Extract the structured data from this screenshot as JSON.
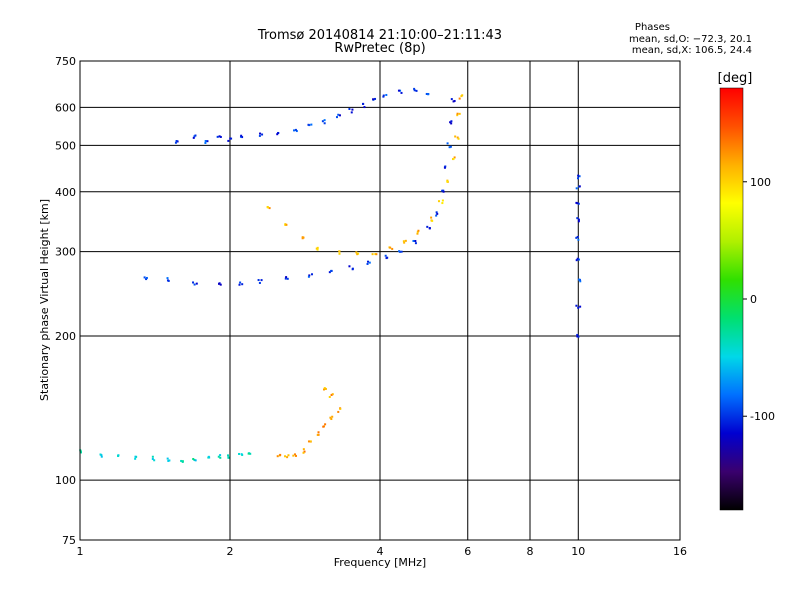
{
  "header": {
    "title_line1": "Tromsø 20140814 21:10:00–21:11:43",
    "title_line2": "RwPretec (8p)",
    "stats_title": "Phases",
    "stats_o": "mean, sd,O: −72.3, 20.1",
    "stats_x": "mean, sd,X: 106.5, 24.4"
  },
  "chart_data": {
    "type": "scatter",
    "xlabel": "Frequency [MHz]",
    "ylabel": "Stationary phase Virtual Height [km]",
    "xscale": "log",
    "yscale": "log",
    "xlim": [
      1,
      16
    ],
    "ylim": [
      75,
      750
    ],
    "xticks": [
      1,
      2,
      4,
      6,
      8,
      10,
      16
    ],
    "xtick_labels": [
      "1",
      "2",
      "4",
      "6",
      "8",
      "10",
      "16"
    ],
    "yticks": [
      75,
      100,
      200,
      300,
      400,
      500,
      600,
      750
    ],
    "ytick_labels": [
      "75",
      "100",
      "200",
      "300",
      "400",
      "500",
      "600",
      "750"
    ],
    "grid": true,
    "colorbar": {
      "label": "[deg]",
      "range": [
        -180,
        180
      ],
      "ticks": [
        100,
        0,
        -100
      ],
      "tick_labels": [
        "100",
        "0",
        "-100"
      ],
      "colors": [
        "#000000",
        "#3a006e",
        "#0000d0",
        "#0070ff",
        "#00d8e8",
        "#00e070",
        "#30e000",
        "#b0f000",
        "#ffff00",
        "#ffb000",
        "#ff5000",
        "#ff0000"
      ]
    },
    "series": [
      {
        "trace": "upper-E-to-F-trace",
        "points": [
          [
            1.57,
            510
          ],
          [
            1.7,
            520
          ],
          [
            1.8,
            510
          ],
          [
            1.9,
            520
          ],
          [
            2.0,
            515
          ],
          [
            2.1,
            520
          ],
          [
            2.3,
            525
          ],
          [
            2.5,
            530
          ],
          [
            2.7,
            540
          ],
          [
            2.9,
            550
          ],
          [
            3.1,
            560
          ],
          [
            3.3,
            575
          ],
          [
            3.5,
            590
          ],
          [
            3.7,
            605
          ],
          [
            3.9,
            620
          ],
          [
            4.1,
            635
          ],
          [
            4.4,
            645
          ],
          [
            4.7,
            650
          ],
          [
            5.0,
            645
          ]
        ],
        "value": -100
      },
      {
        "trace": "lower-O-trace",
        "points": [
          [
            1.35,
            265
          ],
          [
            1.5,
            262
          ],
          [
            1.7,
            258
          ],
          [
            1.9,
            256
          ],
          [
            2.1,
            257
          ],
          [
            2.3,
            260
          ],
          [
            2.6,
            263
          ],
          [
            2.9,
            267
          ],
          [
            3.2,
            272
          ],
          [
            3.5,
            278
          ],
          [
            3.8,
            285
          ],
          [
            4.1,
            292
          ],
          [
            4.4,
            300
          ],
          [
            4.7,
            315
          ],
          [
            5.0,
            335
          ],
          [
            5.2,
            360
          ],
          [
            5.35,
            400
          ],
          [
            5.45,
            450
          ],
          [
            5.5,
            500
          ],
          [
            5.55,
            560
          ],
          [
            5.6,
            620
          ]
        ],
        "value": -100
      },
      {
        "trace": "lower-X-trace",
        "points": [
          [
            2.4,
            370
          ],
          [
            2.6,
            340
          ],
          [
            2.8,
            320
          ],
          [
            3.0,
            305
          ],
          [
            3.3,
            298
          ],
          [
            3.6,
            296
          ],
          [
            3.9,
            298
          ],
          [
            4.2,
            305
          ],
          [
            4.5,
            315
          ],
          [
            4.8,
            330
          ],
          [
            5.1,
            350
          ],
          [
            5.3,
            380
          ],
          [
            5.5,
            420
          ],
          [
            5.6,
            470
          ],
          [
            5.7,
            520
          ],
          [
            5.75,
            580
          ],
          [
            5.8,
            630
          ]
        ],
        "value": 110
      },
      {
        "trace": "E-layer-O",
        "points": [
          [
            1.0,
            115
          ],
          [
            1.1,
            113
          ],
          [
            1.2,
            112
          ],
          [
            1.3,
            111
          ],
          [
            1.4,
            111
          ],
          [
            1.5,
            110
          ],
          [
            1.6,
            110
          ],
          [
            1.7,
            111
          ],
          [
            1.8,
            111
          ],
          [
            1.9,
            112
          ],
          [
            2.0,
            112
          ],
          [
            2.1,
            113
          ],
          [
            2.2,
            113
          ]
        ],
        "value": -40
      },
      {
        "trace": "E-layer-X",
        "points": [
          [
            2.5,
            112
          ],
          [
            2.6,
            112
          ],
          [
            2.7,
            113
          ],
          [
            2.8,
            115
          ],
          [
            2.9,
            120
          ],
          [
            3.0,
            125
          ],
          [
            3.1,
            130
          ],
          [
            3.2,
            135
          ],
          [
            3.3,
            140
          ],
          [
            3.2,
            150
          ],
          [
            3.1,
            155
          ]
        ],
        "value": 120
      },
      {
        "trace": "vertical-10MHz",
        "points": [
          [
            10,
            200
          ],
          [
            10,
            230
          ],
          [
            10,
            260
          ],
          [
            10,
            290
          ],
          [
            10,
            320
          ],
          [
            10,
            350
          ],
          [
            10,
            380
          ],
          [
            10,
            410
          ],
          [
            10,
            430
          ]
        ],
        "value": -100
      }
    ]
  }
}
